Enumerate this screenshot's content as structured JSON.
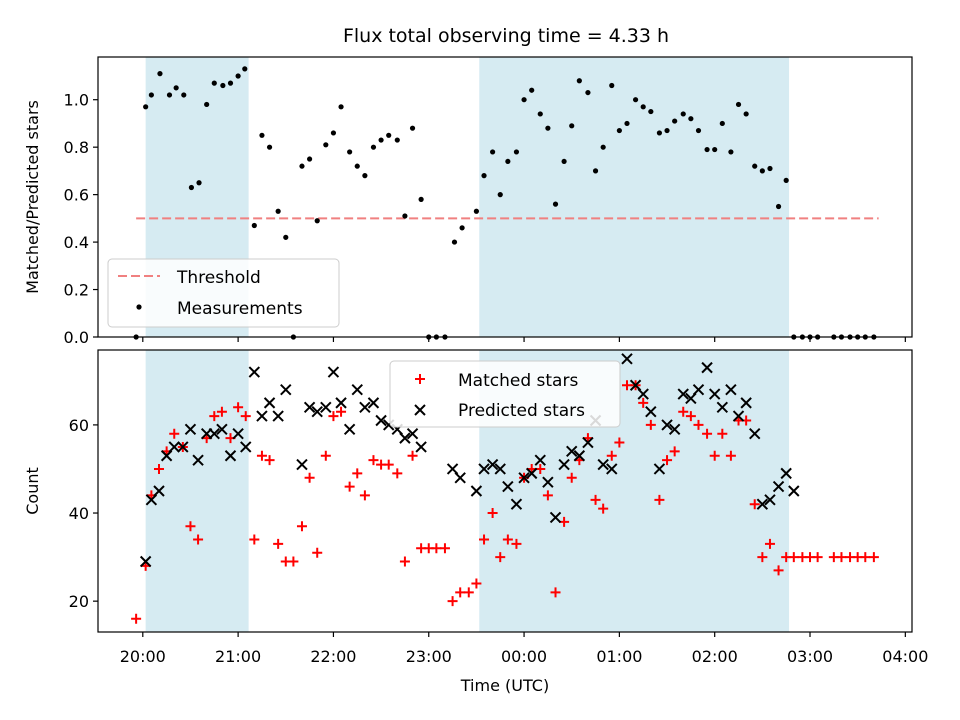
{
  "figure_title": "Flux total observing time = 4.33 h",
  "colors": {
    "shade": "#add8e6",
    "threshold": "#f08080",
    "matched": "#ff0000",
    "predicted": "#000000",
    "measurement": "#000000"
  },
  "chart_data": [
    {
      "type": "scatter",
      "title": "Flux total observing time = 4.33 h",
      "ylabel": "Matched/Predicted stars",
      "xlabel": "",
      "x_unit": "hours since 20:00 UTC",
      "xlim": [
        -0.47,
        8.07
      ],
      "ylim": [
        0.0,
        1.18
      ],
      "yticks": [
        0.0,
        0.2,
        0.4,
        0.6,
        0.8,
        1.0
      ],
      "ytick_labels": [
        "0.0",
        "0.2",
        "0.4",
        "0.6",
        "0.8",
        "1.0"
      ],
      "grid": false,
      "legend_position": "lower-left",
      "shaded_intervals": [
        [
          0.03,
          1.11
        ],
        [
          3.53,
          6.78
        ]
      ],
      "threshold": {
        "name": "Threshold",
        "y": 0.5,
        "x_range": [
          -0.07,
          7.72
        ]
      },
      "series": [
        {
          "name": "Measurements",
          "marker": "dot",
          "points": [
            [
              -0.07,
              0.0
            ],
            [
              0.03,
              0.97
            ],
            [
              0.09,
              1.02
            ],
            [
              0.18,
              1.11
            ],
            [
              0.28,
              1.02
            ],
            [
              0.35,
              1.05
            ],
            [
              0.43,
              1.02
            ],
            [
              0.51,
              0.63
            ],
            [
              0.59,
              0.65
            ],
            [
              0.67,
              0.98
            ],
            [
              0.75,
              1.07
            ],
            [
              0.84,
              1.06
            ],
            [
              0.92,
              1.07
            ],
            [
              1.0,
              1.1
            ],
            [
              1.07,
              1.13
            ],
            [
              1.17,
              0.47
            ],
            [
              1.25,
              0.85
            ],
            [
              1.33,
              0.8
            ],
            [
              1.42,
              0.53
            ],
            [
              1.5,
              0.42
            ],
            [
              1.58,
              0.0
            ],
            [
              1.67,
              0.72
            ],
            [
              1.75,
              0.75
            ],
            [
              1.83,
              0.49
            ],
            [
              1.92,
              0.81
            ],
            [
              2.0,
              0.86
            ],
            [
              2.08,
              0.97
            ],
            [
              2.17,
              0.78
            ],
            [
              2.25,
              0.72
            ],
            [
              2.33,
              0.68
            ],
            [
              2.42,
              0.8
            ],
            [
              2.5,
              0.83
            ],
            [
              2.58,
              0.85
            ],
            [
              2.67,
              0.83
            ],
            [
              2.75,
              0.51
            ],
            [
              2.83,
              0.88
            ],
            [
              2.92,
              0.58
            ],
            [
              3.0,
              0.0
            ],
            [
              3.08,
              0.0
            ],
            [
              3.17,
              0.0
            ],
            [
              3.27,
              0.4
            ],
            [
              3.35,
              0.46
            ],
            [
              3.5,
              0.53
            ],
            [
              3.58,
              0.68
            ],
            [
              3.67,
              0.78
            ],
            [
              3.75,
              0.6
            ],
            [
              3.83,
              0.74
            ],
            [
              3.92,
              0.78
            ],
            [
              4.0,
              1.0
            ],
            [
              4.08,
              1.04
            ],
            [
              4.17,
              0.94
            ],
            [
              4.25,
              0.88
            ],
            [
              4.33,
              0.56
            ],
            [
              4.42,
              0.74
            ],
            [
              4.5,
              0.89
            ],
            [
              4.58,
              1.08
            ],
            [
              4.67,
              1.03
            ],
            [
              4.75,
              0.7
            ],
            [
              4.83,
              0.8
            ],
            [
              4.92,
              1.06
            ],
            [
              5.0,
              0.87
            ],
            [
              5.08,
              0.9
            ],
            [
              5.17,
              1.0
            ],
            [
              5.25,
              0.97
            ],
            [
              5.33,
              0.95
            ],
            [
              5.42,
              0.86
            ],
            [
              5.5,
              0.87
            ],
            [
              5.58,
              0.91
            ],
            [
              5.67,
              0.94
            ],
            [
              5.75,
              0.92
            ],
            [
              5.83,
              0.87
            ],
            [
              5.92,
              0.79
            ],
            [
              6.0,
              0.79
            ],
            [
              6.08,
              0.9
            ],
            [
              6.17,
              0.78
            ],
            [
              6.25,
              0.98
            ],
            [
              6.33,
              0.94
            ],
            [
              6.42,
              0.72
            ],
            [
              6.5,
              0.7
            ],
            [
              6.58,
              0.71
            ],
            [
              6.67,
              0.55
            ],
            [
              6.75,
              0.66
            ],
            [
              6.83,
              0.0
            ],
            [
              6.92,
              0.0
            ],
            [
              7.0,
              0.0
            ],
            [
              7.08,
              0.0
            ],
            [
              7.25,
              0.0
            ],
            [
              7.33,
              0.0
            ],
            [
              7.42,
              0.0
            ],
            [
              7.5,
              0.0
            ],
            [
              7.58,
              0.0
            ],
            [
              7.67,
              0.0
            ]
          ]
        }
      ]
    },
    {
      "type": "scatter",
      "title": "",
      "ylabel": "Count",
      "xlabel": "Time (UTC)",
      "x_unit": "hours since 20:00 UTC",
      "xlim": [
        -0.47,
        8.07
      ],
      "ylim": [
        13,
        77
      ],
      "yticks": [
        20,
        40,
        60
      ],
      "ytick_labels": [
        "20",
        "40",
        "60"
      ],
      "xticks": [
        0,
        1,
        2,
        3,
        4,
        5,
        6,
        7,
        8
      ],
      "xtick_labels": [
        "20:00",
        "21:00",
        "22:00",
        "23:00",
        "00:00",
        "01:00",
        "02:00",
        "03:00",
        "04:00"
      ],
      "grid": false,
      "legend_position": "top-center",
      "shaded_intervals": [
        [
          0.03,
          1.11
        ],
        [
          3.53,
          6.78
        ]
      ],
      "series": [
        {
          "name": "Matched stars",
          "marker": "plus",
          "points": [
            [
              -0.07,
              16
            ],
            [
              0.03,
              28
            ],
            [
              0.09,
              44
            ],
            [
              0.17,
              50
            ],
            [
              0.25,
              54
            ],
            [
              0.33,
              58
            ],
            [
              0.42,
              55
            ],
            [
              0.5,
              37
            ],
            [
              0.58,
              34
            ],
            [
              0.67,
              57
            ],
            [
              0.75,
              62
            ],
            [
              0.83,
              63
            ],
            [
              0.92,
              57
            ],
            [
              1.0,
              64
            ],
            [
              1.08,
              62
            ],
            [
              1.17,
              34
            ],
            [
              1.25,
              53
            ],
            [
              1.33,
              52
            ],
            [
              1.42,
              33
            ],
            [
              1.5,
              29
            ],
            [
              1.58,
              29
            ],
            [
              1.67,
              37
            ],
            [
              1.75,
              48
            ],
            [
              1.83,
              31
            ],
            [
              1.92,
              53
            ],
            [
              2.0,
              62
            ],
            [
              2.08,
              63
            ],
            [
              2.17,
              46
            ],
            [
              2.25,
              49
            ],
            [
              2.33,
              44
            ],
            [
              2.42,
              52
            ],
            [
              2.5,
              51
            ],
            [
              2.58,
              51
            ],
            [
              2.67,
              49
            ],
            [
              2.75,
              29
            ],
            [
              2.83,
              53
            ],
            [
              2.92,
              32
            ],
            [
              3.0,
              32
            ],
            [
              3.08,
              32
            ],
            [
              3.17,
              32
            ],
            [
              3.25,
              20
            ],
            [
              3.33,
              22
            ],
            [
              3.42,
              22
            ],
            [
              3.5,
              24
            ],
            [
              3.58,
              34
            ],
            [
              3.67,
              40
            ],
            [
              3.75,
              30
            ],
            [
              3.83,
              34
            ],
            [
              3.92,
              33
            ],
            [
              4.0,
              48
            ],
            [
              4.08,
              50
            ],
            [
              4.17,
              50
            ],
            [
              4.25,
              44
            ],
            [
              4.33,
              22
            ],
            [
              4.42,
              38
            ],
            [
              4.5,
              48
            ],
            [
              4.58,
              52
            ],
            [
              4.67,
              57
            ],
            [
              4.75,
              43
            ],
            [
              4.83,
              41
            ],
            [
              4.92,
              53
            ],
            [
              5.0,
              56
            ],
            [
              5.08,
              69
            ],
            [
              5.17,
              69
            ],
            [
              5.25,
              65
            ],
            [
              5.33,
              60
            ],
            [
              5.42,
              43
            ],
            [
              5.5,
              52
            ],
            [
              5.58,
              54
            ],
            [
              5.67,
              63
            ],
            [
              5.75,
              62
            ],
            [
              5.83,
              60
            ],
            [
              5.92,
              58
            ],
            [
              6.0,
              53
            ],
            [
              6.08,
              58
            ],
            [
              6.17,
              53
            ],
            [
              6.25,
              61
            ],
            [
              6.33,
              61
            ],
            [
              6.42,
              42
            ],
            [
              6.5,
              30
            ],
            [
              6.58,
              33
            ],
            [
              6.67,
              27
            ],
            [
              6.75,
              30
            ],
            [
              6.83,
              30
            ],
            [
              6.92,
              30
            ],
            [
              7.0,
              30
            ],
            [
              7.08,
              30
            ],
            [
              7.25,
              30
            ],
            [
              7.33,
              30
            ],
            [
              7.42,
              30
            ],
            [
              7.5,
              30
            ],
            [
              7.58,
              30
            ],
            [
              7.67,
              30
            ]
          ]
        },
        {
          "name": "Predicted stars",
          "marker": "x",
          "points": [
            [
              0.03,
              29
            ],
            [
              0.09,
              43
            ],
            [
              0.17,
              45
            ],
            [
              0.25,
              53
            ],
            [
              0.33,
              55
            ],
            [
              0.42,
              55
            ],
            [
              0.5,
              59
            ],
            [
              0.58,
              52
            ],
            [
              0.67,
              58
            ],
            [
              0.75,
              58
            ],
            [
              0.83,
              59
            ],
            [
              0.92,
              53
            ],
            [
              1.0,
              58
            ],
            [
              1.08,
              55
            ],
            [
              1.17,
              72
            ],
            [
              1.25,
              62
            ],
            [
              1.33,
              65
            ],
            [
              1.42,
              62
            ],
            [
              1.5,
              68
            ],
            [
              1.67,
              51
            ],
            [
              1.75,
              64
            ],
            [
              1.83,
              63
            ],
            [
              1.92,
              64
            ],
            [
              2.0,
              72
            ],
            [
              2.08,
              65
            ],
            [
              2.17,
              59
            ],
            [
              2.25,
              68
            ],
            [
              2.33,
              64
            ],
            [
              2.42,
              65
            ],
            [
              2.5,
              61
            ],
            [
              2.58,
              60
            ],
            [
              2.67,
              59
            ],
            [
              2.75,
              57
            ],
            [
              2.83,
              58
            ],
            [
              2.92,
              55
            ],
            [
              3.25,
              50
            ],
            [
              3.33,
              48
            ],
            [
              3.5,
              45
            ],
            [
              3.58,
              50
            ],
            [
              3.67,
              51
            ],
            [
              3.75,
              50
            ],
            [
              3.83,
              46
            ],
            [
              3.92,
              42
            ],
            [
              4.0,
              48
            ],
            [
              4.08,
              49
            ],
            [
              4.17,
              52
            ],
            [
              4.25,
              47
            ],
            [
              4.33,
              39
            ],
            [
              4.42,
              51
            ],
            [
              4.5,
              54
            ],
            [
              4.58,
              53
            ],
            [
              4.67,
              56
            ],
            [
              4.75,
              61
            ],
            [
              4.83,
              51
            ],
            [
              4.92,
              50
            ],
            [
              5.08,
              75
            ],
            [
              5.17,
              69
            ],
            [
              5.25,
              67
            ],
            [
              5.33,
              63
            ],
            [
              5.42,
              50
            ],
            [
              5.5,
              60
            ],
            [
              5.58,
              59
            ],
            [
              5.67,
              67
            ],
            [
              5.75,
              66
            ],
            [
              5.83,
              68
            ],
            [
              5.92,
              73
            ],
            [
              6.0,
              67
            ],
            [
              6.08,
              64
            ],
            [
              6.17,
              68
            ],
            [
              6.25,
              62
            ],
            [
              6.33,
              65
            ],
            [
              6.42,
              58
            ],
            [
              6.5,
              42
            ],
            [
              6.58,
              43
            ],
            [
              6.67,
              46
            ],
            [
              6.75,
              49
            ],
            [
              6.83,
              45
            ]
          ]
        }
      ]
    }
  ]
}
